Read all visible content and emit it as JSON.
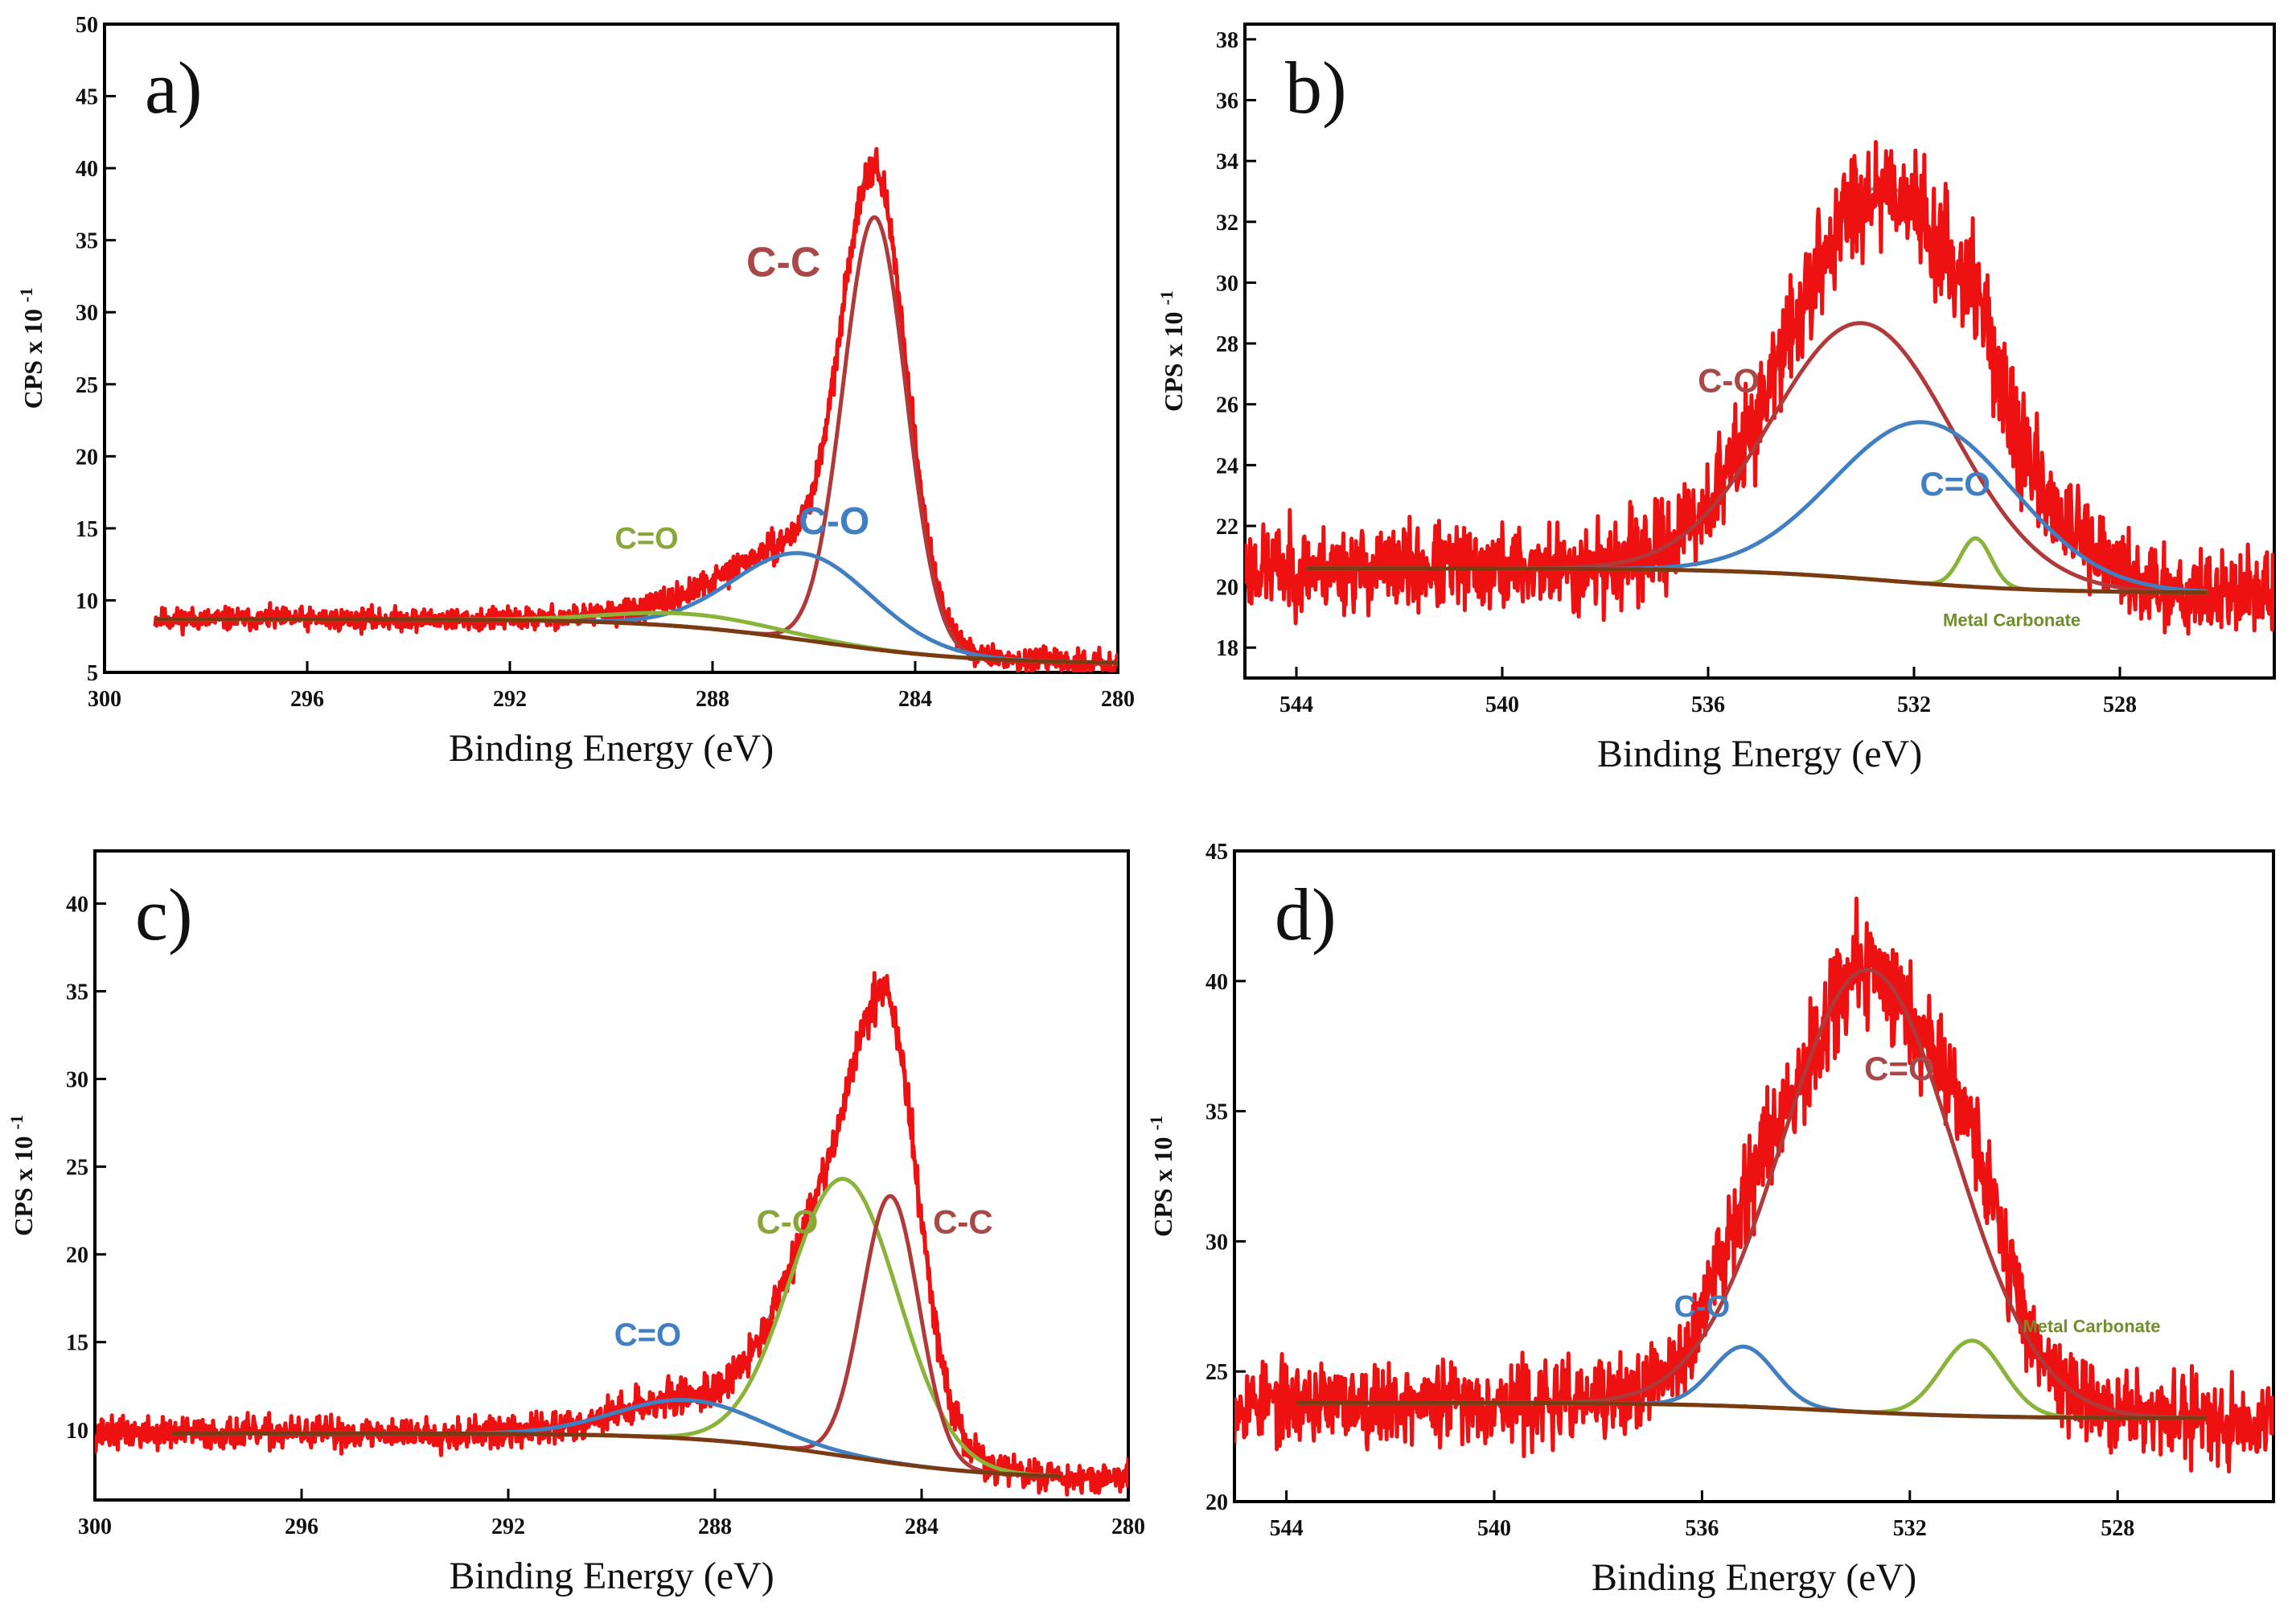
{
  "chart_data": [
    {
      "type": "line",
      "panel_label": "a)",
      "xlabel": "Binding Energy (eV)",
      "ylabel_main": "CPS x 10",
      "ylabel_exp": "-1",
      "xlim": [
        300,
        280
      ],
      "ylim": [
        5,
        50
      ],
      "xticks": [
        300,
        296,
        292,
        288,
        284,
        280
      ],
      "yticks": [
        5,
        10,
        15,
        20,
        25,
        30,
        35,
        40,
        45,
        50
      ],
      "xdata_range": [
        299,
        280
      ],
      "background": {
        "y_high": 8.7,
        "y_low": 5.6,
        "center": 286,
        "width": 1.6
      },
      "noise": {
        "amp": 0.65,
        "seed": 11
      },
      "components": [
        {
          "name": "C-C",
          "center": 284.8,
          "amp": 30.0,
          "sigma": 0.62,
          "color": "#b03a3a"
        },
        {
          "name": "C-O",
          "center": 286.2,
          "amp": 6.0,
          "sigma": 1.35,
          "color": "#3f7fc2"
        },
        {
          "name": "C=O",
          "center": 288.4,
          "amp": 0.9,
          "sigma": 1.6,
          "color": "#8ab33a"
        }
      ],
      "annotations": [
        {
          "text": "C-C",
          "x": 286.6,
          "y": 32.5,
          "color": "#a84848",
          "size": 52
        },
        {
          "text": "C-O",
          "x": 285.6,
          "y": 14.6,
          "color": "#3f7fc2",
          "size": 48
        },
        {
          "text": "C=O",
          "x": 289.3,
          "y": 13.6,
          "color": "#8aa63a",
          "size": 38
        }
      ]
    },
    {
      "type": "line",
      "panel_label": "b)",
      "xlabel": "Binding Energy (eV)",
      "ylabel_main": "CPS x 10",
      "ylabel_exp": "-1",
      "xlim": [
        545,
        525
      ],
      "ylim": [
        17,
        38.5
      ],
      "xticks": [
        544,
        540,
        536,
        532,
        528
      ],
      "yticks": [
        18,
        20,
        22,
        24,
        26,
        28,
        30,
        32,
        34,
        36,
        38
      ],
      "xdata_range": [
        545,
        525
      ],
      "fit_range": [
        543.8,
        526.3
      ],
      "background": {
        "y_high": 20.6,
        "y_low": 19.8,
        "center": 532.5,
        "width": 1.5
      },
      "noise": {
        "amp": 1.15,
        "seed": 23
      },
      "components": [
        {
          "name": "C-O",
          "center": 533.0,
          "amp": 8.4,
          "sigma": 1.75,
          "color": "#b03a3a"
        },
        {
          "name": "C=O",
          "center": 531.8,
          "amp": 5.3,
          "sigma": 1.75,
          "color": "#3f7fc2"
        },
        {
          "name": "Metal Carbonate",
          "center": 530.8,
          "amp": 1.6,
          "sigma": 0.3,
          "color": "#8ab33a"
        }
      ],
      "annotations": [
        {
          "text": "C-O",
          "x": 535.6,
          "y": 26.4,
          "color": "#a84848",
          "size": 42
        },
        {
          "text": "C=O",
          "x": 531.2,
          "y": 23.0,
          "color": "#3f7fc2",
          "size": 42
        },
        {
          "text": "Metal Carbonate",
          "x": 530.1,
          "y": 18.7,
          "color": "#6f8f2a",
          "size": 22
        }
      ]
    },
    {
      "type": "line",
      "panel_label": "c)",
      "xlabel": "Binding Energy (eV)",
      "ylabel_main": "CPS x 10",
      "ylabel_exp": "-1",
      "xlim": [
        300,
        280
      ],
      "ylim": [
        6,
        43
      ],
      "xticks": [
        300,
        296,
        292,
        288,
        284,
        280
      ],
      "yticks": [
        10,
        15,
        20,
        25,
        30,
        35,
        40
      ],
      "xdata_range": [
        300,
        280
      ],
      "fit_range": [
        298.5,
        281.3
      ],
      "background": {
        "y_high": 9.8,
        "y_low": 7.2,
        "center": 285.5,
        "width": 1.5
      },
      "noise": {
        "amp": 0.75,
        "seed": 37
      },
      "components": [
        {
          "name": "C-O",
          "center": 285.5,
          "amp": 15.8,
          "sigma": 1.05,
          "color": "#8ab33a"
        },
        {
          "name": "C-C",
          "center": 284.6,
          "amp": 15.2,
          "sigma": 0.55,
          "color": "#b03a3a"
        },
        {
          "name": "C=O",
          "center": 288.5,
          "amp": 2.2,
          "sigma": 1.4,
          "color": "#3f7fc2"
        }
      ],
      "annotations": [
        {
          "text": "C-O",
          "x": 286.6,
          "y": 21.2,
          "color": "#8aa63a",
          "size": 42
        },
        {
          "text": "C-C",
          "x": 283.2,
          "y": 21.2,
          "color": "#a84848",
          "size": 42
        },
        {
          "text": "C=O",
          "x": 289.3,
          "y": 14.8,
          "color": "#3f7fc2",
          "size": 40
        }
      ]
    },
    {
      "type": "line",
      "panel_label": "d)",
      "xlabel": "Binding Energy (eV)",
      "ylabel_main": "CPS x 10",
      "ylabel_exp": "-1",
      "xlim": [
        545,
        525
      ],
      "ylim": [
        20,
        45
      ],
      "xticks": [
        544,
        540,
        536,
        532,
        528
      ],
      "yticks": [
        20,
        25,
        30,
        35,
        40,
        45
      ],
      "xdata_range": [
        545,
        525
      ],
      "fit_range": [
        543.8,
        526.3
      ],
      "background": {
        "y_high": 23.8,
        "y_low": 23.2,
        "center": 533.5,
        "width": 1.5
      },
      "noise": {
        "amp": 1.25,
        "seed": 53
      },
      "components": [
        {
          "name": "C=O",
          "center": 532.8,
          "amp": 17.0,
          "sigma": 1.65,
          "color": "#b03a3a"
        },
        {
          "name": "C-O",
          "center": 535.2,
          "amp": 2.3,
          "sigma": 0.6,
          "color": "#3f7fc2"
        },
        {
          "name": "Metal Carbonate",
          "center": 530.8,
          "amp": 2.9,
          "sigma": 0.6,
          "color": "#8ab33a"
        }
      ],
      "annotations": [
        {
          "text": "C=O",
          "x": 532.2,
          "y": 36.2,
          "color": "#a84848",
          "size": 42
        },
        {
          "text": "C-O",
          "x": 536.0,
          "y": 27.1,
          "color": "#3f7fc2",
          "size": 38
        },
        {
          "text": "Metal Carbonate",
          "x": 528.5,
          "y": 26.5,
          "color": "#6f8f2a",
          "size": 22
        }
      ]
    }
  ]
}
